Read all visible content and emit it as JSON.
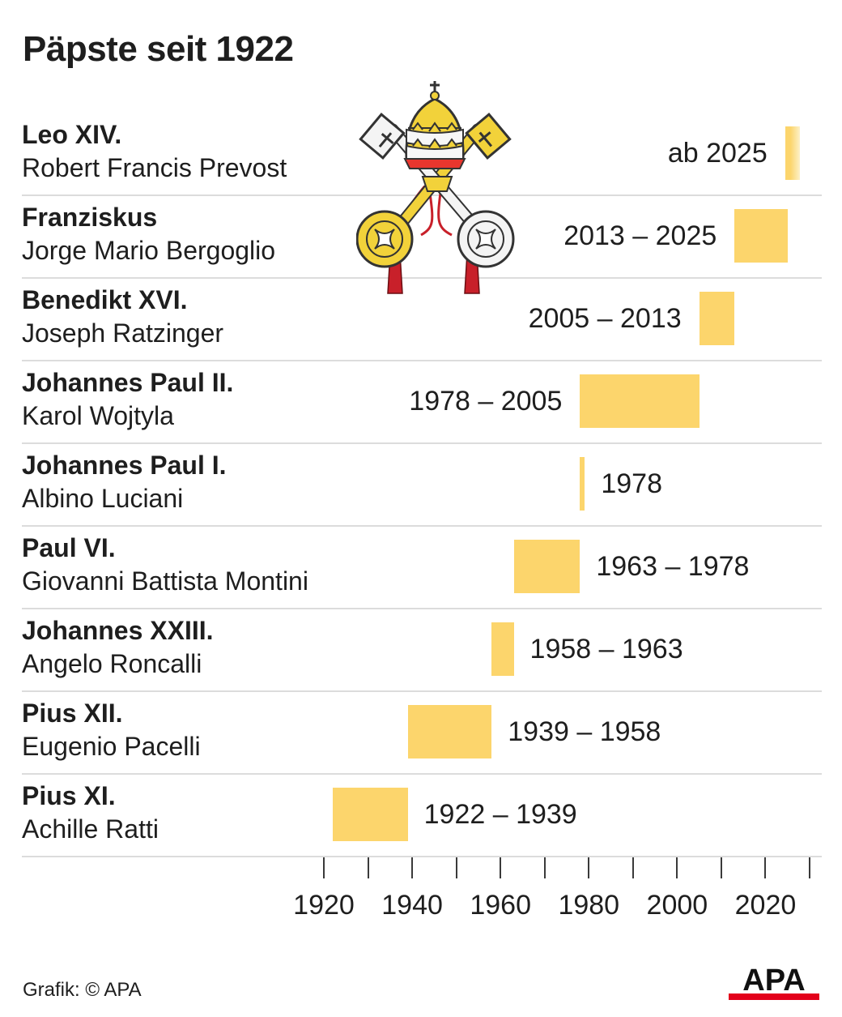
{
  "title": "Päpste seit 1922",
  "credit": "Grafik: © APA",
  "logo_text": "APA",
  "colors": {
    "bar": "#fcd56c",
    "text": "#1e1e1e",
    "rule": "#dcdcdc",
    "logo_red": "#e3001b"
  },
  "emblem": {
    "icon": "papal-emblem-keys-and-tiara-icon"
  },
  "chart_data": {
    "type": "bar",
    "orientation": "horizontal-timeline",
    "xlim": [
      1920,
      2030
    ],
    "ticks": [
      1920,
      1930,
      1940,
      1950,
      1960,
      1970,
      1980,
      1990,
      2000,
      2010,
      2020,
      2030
    ],
    "tick_labels": [
      {
        "value": 1920,
        "label": "1920"
      },
      {
        "value": 1940,
        "label": "1940"
      },
      {
        "value": 1960,
        "label": "1960"
      },
      {
        "value": 1980,
        "label": "1980"
      },
      {
        "value": 2000,
        "label": "2000"
      },
      {
        "value": 2020,
        "label": "2020"
      }
    ],
    "rows": [
      {
        "name": "Leo XIV.",
        "civil": "Robert Francis Prevost",
        "start": 2025,
        "end": 2025.35,
        "label": "ab 2025",
        "label_side": "left",
        "ongoing": true
      },
      {
        "name": "Franziskus",
        "civil": "Jorge Mario Bergoglio",
        "start": 2013,
        "end": 2025,
        "label": "2013 – 2025",
        "label_side": "left"
      },
      {
        "name": "Benedikt XVI.",
        "civil": "Joseph Ratzinger",
        "start": 2005,
        "end": 2013,
        "label": "2005 – 2013",
        "label_side": "left"
      },
      {
        "name": "Johannes Paul II.",
        "civil": "Karol Wojtyla",
        "start": 1978,
        "end": 2005,
        "label": "1978 – 2005",
        "label_side": "left"
      },
      {
        "name": "Johannes Paul I.",
        "civil": "Albino Luciani",
        "start": 1978,
        "end": 1978,
        "label": "1978",
        "label_side": "right"
      },
      {
        "name": "Paul VI.",
        "civil": "Giovanni Battista Montini",
        "start": 1963,
        "end": 1978,
        "label": "1963 – 1978",
        "label_side": "right"
      },
      {
        "name": "Johannes XXIII.",
        "civil": "Angelo Roncalli",
        "start": 1958,
        "end": 1963,
        "label": "1958 – 1963",
        "label_side": "right"
      },
      {
        "name": "Pius XII.",
        "civil": "Eugenio Pacelli",
        "start": 1939,
        "end": 1958,
        "label": "1939 – 1958",
        "label_side": "right"
      },
      {
        "name": "Pius XI.",
        "civil": "Achille Ratti",
        "start": 1922,
        "end": 1939,
        "label": "1922 – 1939",
        "label_side": "right"
      }
    ]
  }
}
